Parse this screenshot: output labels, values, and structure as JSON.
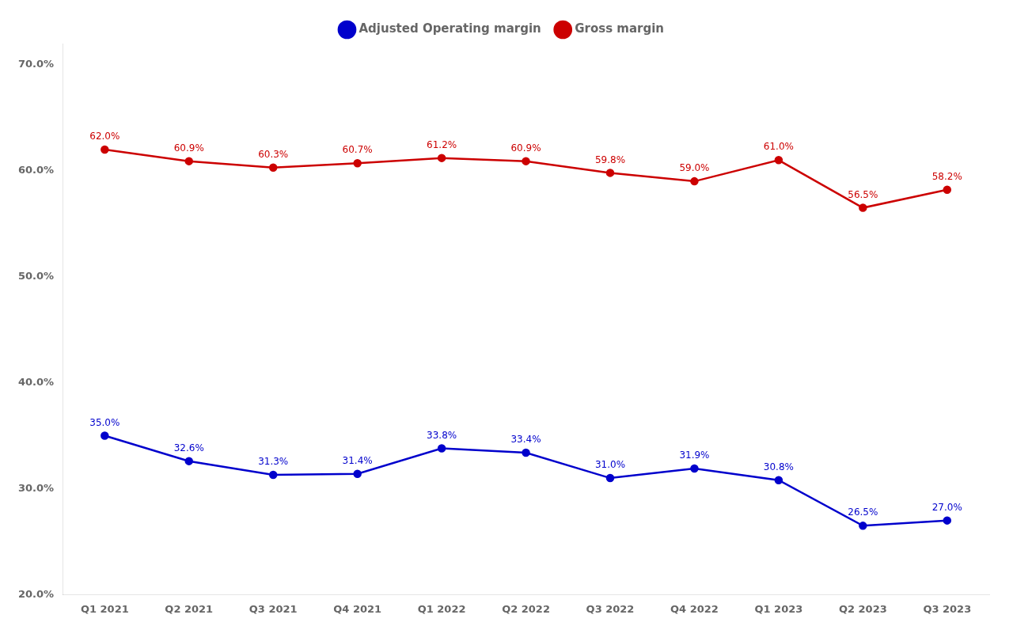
{
  "chart_data": {
    "type": "line",
    "categories": [
      "Q1 2021",
      "Q2 2021",
      "Q3 2021",
      "Q4 2021",
      "Q1 2022",
      "Q2 2022",
      "Q3 2022",
      "Q4 2022",
      "Q1 2023",
      "Q2 2023",
      "Q3 2023"
    ],
    "series": [
      {
        "name": "Gross margin",
        "color": "#cc0000",
        "marker": "circle",
        "values": [
          62.0,
          60.9,
          60.3,
          60.7,
          61.2,
          60.9,
          59.8,
          59.0,
          61.0,
          56.5,
          58.2
        ],
        "value_labels": [
          "62.0%",
          "60.9%",
          "60.3%",
          "60.7%",
          "61.2%",
          "60.9%",
          "59.8%",
          "59.0%",
          "61.0%",
          "56.5%",
          "58.2%"
        ]
      },
      {
        "name": "Adjusted Operating margin",
        "color": "#0000cc",
        "marker": "circle",
        "values": [
          35.0,
          32.6,
          31.3,
          31.4,
          33.8,
          33.4,
          31.0,
          31.9,
          30.8,
          26.5,
          27.0
        ],
        "value_labels": [
          "35.0%",
          "32.6%",
          "31.3%",
          "31.4%",
          "33.8%",
          "33.4%",
          "31.0%",
          "31.9%",
          "30.8%",
          "26.5%",
          "27.0%"
        ]
      }
    ],
    "ylim": [
      20.0,
      72.0
    ],
    "yticks": [
      {
        "value": 20.0,
        "label": "20.0%"
      },
      {
        "value": 30.0,
        "label": "30.0%"
      },
      {
        "value": 40.0,
        "label": "40.0%"
      },
      {
        "value": 50.0,
        "label": "50.0%"
      },
      {
        "value": 60.0,
        "label": "60.0%"
      },
      {
        "value": 70.0,
        "label": "70.0%"
      }
    ],
    "grid": false,
    "legend": "top",
    "data_labels": true
  }
}
